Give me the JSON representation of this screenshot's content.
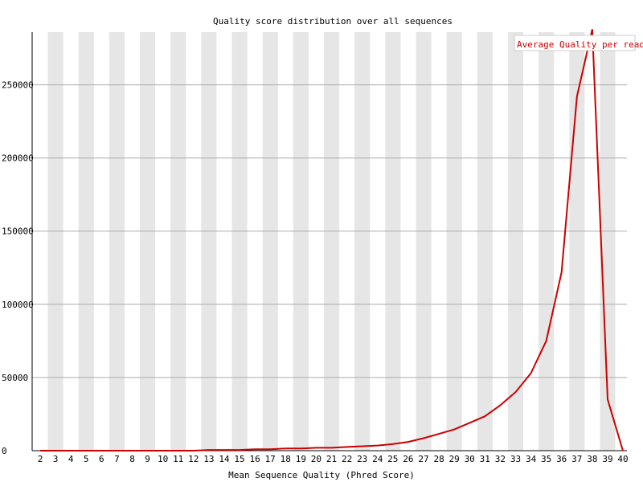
{
  "chart_data": {
    "type": "line",
    "title": "Quality score distribution over all sequences",
    "xlabel": "Mean Sequence Quality (Phred Score)",
    "ylabel": "",
    "categories": [
      "2",
      "3",
      "4",
      "5",
      "6",
      "7",
      "8",
      "9",
      "10",
      "11",
      "12",
      "13",
      "14",
      "15",
      "16",
      "17",
      "18",
      "19",
      "20",
      "21",
      "22",
      "23",
      "24",
      "25",
      "26",
      "27",
      "28",
      "29",
      "30",
      "31",
      "32",
      "33",
      "34",
      "35",
      "36",
      "37",
      "38",
      "39",
      "40"
    ],
    "series": [
      {
        "name": "Average Quality per read",
        "color": "#cc0000",
        "values": [
          0,
          0,
          0,
          0,
          0,
          0,
          0,
          0,
          0,
          0,
          0,
          500,
          500,
          500,
          1000,
          1000,
          1500,
          1500,
          2000,
          2000,
          2500,
          3000,
          3500,
          4500,
          6000,
          8500,
          11500,
          14500,
          19000,
          23500,
          31000,
          40000,
          53000,
          75000,
          122000,
          242000,
          288000,
          35000,
          0
        ]
      }
    ],
    "yticks": [
      0,
      50000,
      100000,
      150000,
      200000,
      250000
    ],
    "ylim": [
      0,
      286000
    ],
    "grid": true,
    "legend_position": "top-right",
    "stripe_color": "#e6e6e6",
    "gridline_color": "#aaaaaa"
  }
}
